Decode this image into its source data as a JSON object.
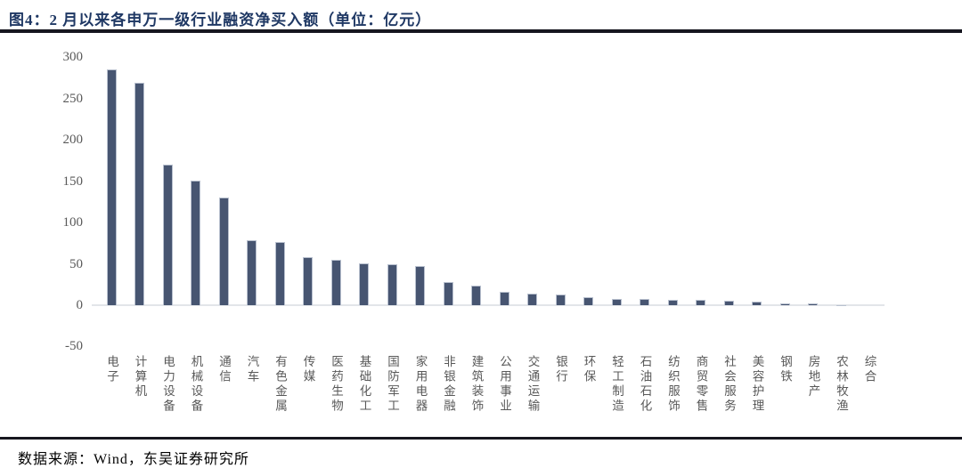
{
  "header": {
    "title": "图4：2 月以来各申万一级行业融资净买入额（单位：亿元）"
  },
  "footer": {
    "source": "数据来源：Wind，东吴证券研究所"
  },
  "colors": {
    "bar": "#475571",
    "bar_border": "#b9c1cf",
    "title": "#1F3864",
    "axis_label": "#595959",
    "baseline": "#e2e5e9",
    "rule": "#16161f"
  },
  "chart_data": {
    "type": "bar",
    "title": "2 月以来各申万一级行业融资净买入额",
    "unit": "亿元",
    "categories": [
      "电子",
      "计算机",
      "电力设备",
      "机械设备",
      "通信",
      "汽车",
      "有色金属",
      "传媒",
      "医药生物",
      "基础化工",
      "国防军工",
      "家用电器",
      "非银金融",
      "建筑装饰",
      "公用事业",
      "交通运输",
      "银行",
      "环保",
      "轻工制造",
      "石油石化",
      "纺织服饰",
      "商贸零售",
      "社会服务",
      "美容护理",
      "钢铁",
      "房地产",
      "农林牧渔",
      "综合"
    ],
    "values": [
      285,
      269,
      170,
      151,
      130,
      79,
      76,
      58,
      55,
      51,
      50,
      47,
      28,
      24,
      16,
      14,
      13,
      10,
      8,
      7,
      6,
      6,
      5,
      4,
      2,
      2,
      0.5,
      0.2
    ],
    "xlabel": "",
    "ylabel": "",
    "ylim": [
      -50,
      300
    ],
    "yticks": [
      300,
      250,
      200,
      150,
      100,
      50,
      0,
      -50
    ],
    "grid": false,
    "legend": false
  }
}
